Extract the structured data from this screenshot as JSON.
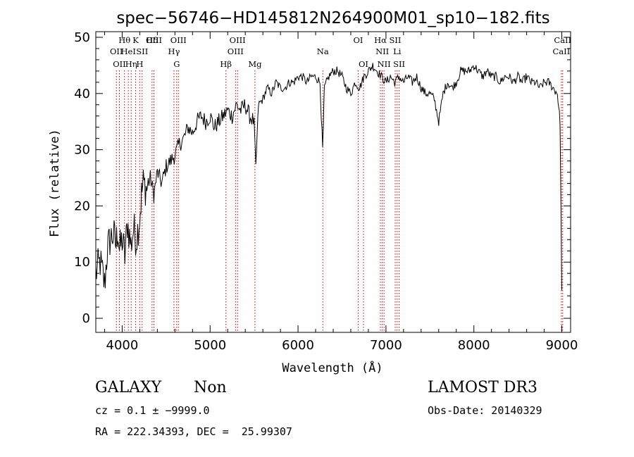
{
  "chart_data": {
    "type": "line",
    "title": "spec−56746−HD145812N264900M01_sp10−182.fits",
    "xlabel": "Wavelength (Å)",
    "ylabel": "Flux (relative)",
    "xlim": [
      3700,
      9100
    ],
    "ylim": [
      -2.5,
      51
    ],
    "xticks": [
      4000,
      5000,
      6000,
      7000,
      8000,
      9000
    ],
    "yticks": [
      0,
      10,
      20,
      30,
      40,
      50
    ],
    "grid": false,
    "series": [
      {
        "name": "spectrum",
        "x": [
          3700,
          3750,
          3800,
          3830,
          3860,
          3900,
          3930,
          3950,
          3970,
          4000,
          4030,
          4060,
          4100,
          4130,
          4160,
          4200,
          4220,
          4240,
          4280,
          4320,
          4360,
          4400,
          4450,
          4500,
          4550,
          4600,
          4650,
          4700,
          4750,
          4800,
          4850,
          4900,
          4950,
          5000,
          5050,
          5100,
          5150,
          5200,
          5250,
          5300,
          5350,
          5400,
          5450,
          5500,
          5520,
          5550,
          5600,
          5650,
          5700,
          5750,
          5800,
          5850,
          5900,
          5950,
          6000,
          6050,
          6100,
          6150,
          6200,
          6250,
          6280,
          6300,
          6350,
          6400,
          6450,
          6500,
          6550,
          6600,
          6650,
          6700,
          6750,
          6800,
          6850,
          6900,
          6950,
          7000,
          7050,
          7100,
          7150,
          7200,
          7250,
          7300,
          7350,
          7400,
          7450,
          7500,
          7550,
          7600,
          7650,
          7700,
          7750,
          7800,
          7850,
          7900,
          7950,
          8000,
          8050,
          8100,
          8150,
          8200,
          8250,
          8300,
          8350,
          8400,
          8450,
          8500,
          8550,
          8600,
          8650,
          8700,
          8750,
          8800,
          8850,
          8900,
          8950,
          8980,
          9000
        ],
        "y": [
          8,
          10,
          6,
          12,
          14,
          15,
          13,
          16,
          12,
          14,
          11,
          17,
          13,
          16,
          14,
          18,
          22,
          24,
          23,
          25,
          22,
          26,
          24,
          27,
          28,
          29,
          31,
          32,
          34,
          33,
          35,
          36,
          35,
          36,
          34,
          35,
          36,
          37,
          36,
          38,
          37,
          38,
          36,
          35,
          27,
          38,
          39,
          41,
          40,
          42,
          41,
          41,
          42,
          42,
          43,
          43,
          42,
          43,
          43,
          42,
          30,
          41,
          43,
          44,
          44,
          43,
          41,
          40,
          42,
          41,
          43,
          44,
          45,
          44,
          43,
          42,
          43,
          42,
          43,
          42,
          43,
          42,
          43,
          41,
          40,
          40,
          39,
          35,
          40,
          42,
          41,
          42,
          44,
          44,
          44,
          45,
          44,
          43,
          44,
          43,
          43,
          42,
          43,
          43,
          42,
          43,
          42,
          43,
          42,
          42,
          41,
          42,
          42,
          41,
          40,
          35,
          5
        ]
      }
    ],
    "line_markers": [
      {
        "wl": 3934,
        "label": "OII",
        "row": 2
      },
      {
        "wl": 3968,
        "label": "OII",
        "row": 3
      },
      {
        "wl": 4026,
        "label": "Hθ",
        "row": 1
      },
      {
        "wl": 4102,
        "label": "Hη",
        "row": 3
      },
      {
        "wl": 4070,
        "label": "HeI",
        "row": 2
      },
      {
        "wl": 4153,
        "label": "K",
        "row": 1
      },
      {
        "wl": 4227,
        "label": "SII",
        "row": 2
      },
      {
        "wl": 4200,
        "label": "H",
        "row": 3
      },
      {
        "wl": 4340,
        "label": "Hδ",
        "row": 1
      },
      {
        "wl": 4361,
        "label": "OIII",
        "row": 1
      },
      {
        "wl": 4589,
        "label": "Hγ",
        "row": 2
      },
      {
        "wl": 4620,
        "label": "G",
        "row": 3
      },
      {
        "wl": 4640,
        "label": "OIII",
        "row": 1
      },
      {
        "wl": 5180,
        "label": "Hβ",
        "row": 3
      },
      {
        "wl": 5289,
        "label": "OIII",
        "row": 2
      },
      {
        "wl": 5312,
        "label": "OIII",
        "row": 1
      },
      {
        "wl": 5510,
        "label": "Mg",
        "row": 3
      },
      {
        "wl": 6282,
        "label": "Na",
        "row": 2
      },
      {
        "wl": 6684,
        "label": "OI",
        "row": 1
      },
      {
        "wl": 6744,
        "label": "OI",
        "row": 3
      },
      {
        "wl": 6937,
        "label": "Hα",
        "row": 1
      },
      {
        "wl": 6958,
        "label": "NII",
        "row": 2
      },
      {
        "wl": 6978,
        "label": "NII",
        "row": 3
      },
      {
        "wl": 7105,
        "label": "SII",
        "row": 1
      },
      {
        "wl": 7127,
        "label": "Li",
        "row": 2
      },
      {
        "wl": 7150,
        "label": "SII",
        "row": 3
      },
      {
        "wl": 9010,
        "label": "CaII",
        "row": 1
      },
      {
        "wl": 8995,
        "label": "CaII",
        "row": 2
      }
    ]
  },
  "info": {
    "classification": "GALAXY",
    "subclass": "Non",
    "survey": "LAMOST DR3",
    "cz": "cz = 0.1 ± −9999.0",
    "obs_date": "Obs-Date: 20140329",
    "radec": "RA = 222.34393, DEC =  25.99307"
  }
}
